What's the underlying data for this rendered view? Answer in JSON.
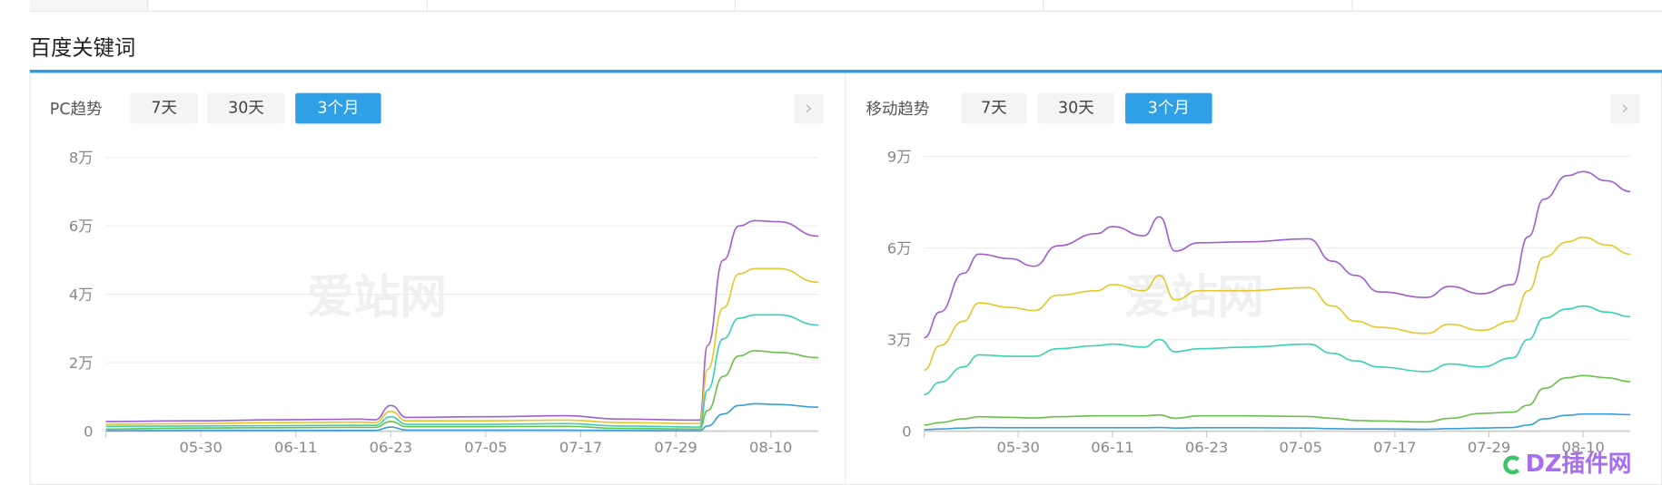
{
  "section_title": "百度关键词",
  "watermark": "爱站网",
  "corner_logo": "DZ插件网",
  "colors": {
    "accent": "#2fa0e6",
    "series": [
      "#a05fd0",
      "#e6c72a",
      "#3ccfb5",
      "#6ac04c",
      "#3a9fd8"
    ]
  },
  "pc": {
    "label": "PC趋势",
    "buttons": [
      "7天",
      "30天",
      "3个月"
    ],
    "active_button": "3个月",
    "next_icon": "chevron-right-icon"
  },
  "mobile": {
    "label": "移动趋势",
    "buttons": [
      "7天",
      "30天",
      "3个月"
    ],
    "active_button": "3个月",
    "next_icon": "chevron-right-icon"
  },
  "chart_data": [
    {
      "type": "line",
      "title": "PC趋势",
      "unit": "万",
      "ylim": [
        0,
        8
      ],
      "yticks": [
        "0",
        "2万",
        "4万",
        "6万",
        "8万"
      ],
      "xlim": [
        "05-18",
        "08-16"
      ],
      "xticks": [
        "05-30",
        "06-11",
        "06-23",
        "07-05",
        "07-17",
        "07-29",
        "08-10"
      ],
      "grid": true,
      "x": [
        "05-18",
        "05-29",
        "06-09",
        "06-19",
        "06-21",
        "06-23",
        "06-25",
        "07-05",
        "07-15",
        "07-22",
        "08-01",
        "08-02",
        "08-04",
        "08-06",
        "08-08",
        "08-11",
        "08-16"
      ],
      "series": [
        {
          "values": [
            0.28,
            0.3,
            0.33,
            0.35,
            0.33,
            0.75,
            0.4,
            0.42,
            0.45,
            0.35,
            0.32,
            2.5,
            5.0,
            6.0,
            6.15,
            6.12,
            5.7
          ]
        },
        {
          "values": [
            0.2,
            0.22,
            0.25,
            0.26,
            0.25,
            0.58,
            0.3,
            0.3,
            0.32,
            0.25,
            0.22,
            1.8,
            3.6,
            4.6,
            4.75,
            4.75,
            4.35
          ]
        },
        {
          "values": [
            0.14,
            0.15,
            0.16,
            0.17,
            0.17,
            0.42,
            0.2,
            0.2,
            0.22,
            0.15,
            0.12,
            1.2,
            2.7,
            3.3,
            3.4,
            3.4,
            3.1
          ]
        },
        {
          "values": [
            0.06,
            0.09,
            0.1,
            0.11,
            0.11,
            0.28,
            0.13,
            0.13,
            0.14,
            0.08,
            0.06,
            0.6,
            1.6,
            2.2,
            2.35,
            2.3,
            2.15
          ]
        },
        {
          "values": [
            0.01,
            0.02,
            0.02,
            0.02,
            0.02,
            0.12,
            0.03,
            0.03,
            0.03,
            0.02,
            0.01,
            0.15,
            0.5,
            0.75,
            0.8,
            0.78,
            0.7
          ]
        }
      ]
    },
    {
      "type": "line",
      "title": "移动趋势",
      "unit": "万",
      "ylim": [
        0,
        9
      ],
      "yticks": [
        "0",
        "3万",
        "6万",
        "9万"
      ],
      "xlim": [
        "05-18",
        "08-16"
      ],
      "xticks": [
        "05-30",
        "06-11",
        "06-23",
        "07-05",
        "07-17",
        "07-29",
        "08-10"
      ],
      "grid": true,
      "x": [
        "05-18",
        "05-20",
        "05-23",
        "05-25",
        "05-29",
        "06-01",
        "06-04",
        "06-09",
        "06-11",
        "06-15",
        "06-17",
        "06-19",
        "06-22",
        "06-28",
        "07-06",
        "07-09",
        "07-12",
        "07-15",
        "07-21",
        "07-24",
        "07-28",
        "08-01",
        "08-03",
        "08-05",
        "08-08",
        "08-10",
        "08-13",
        "08-16"
      ],
      "series": [
        {
          "values": [
            3.06,
            3.9,
            5.17,
            5.8,
            5.65,
            5.4,
            6.07,
            6.47,
            6.7,
            6.4,
            7.02,
            5.9,
            6.17,
            6.2,
            6.3,
            5.57,
            5.1,
            4.56,
            4.38,
            4.74,
            4.5,
            4.8,
            6.37,
            7.6,
            8.37,
            8.5,
            8.2,
            7.85
          ]
        },
        {
          "values": [
            2.0,
            2.8,
            3.6,
            4.2,
            4.05,
            3.95,
            4.45,
            4.6,
            4.8,
            4.6,
            5.1,
            4.3,
            4.6,
            4.6,
            4.7,
            4.1,
            3.6,
            3.4,
            3.2,
            3.5,
            3.3,
            3.6,
            4.6,
            5.7,
            6.2,
            6.35,
            6.1,
            5.8
          ]
        },
        {
          "values": [
            1.2,
            1.6,
            2.1,
            2.5,
            2.45,
            2.45,
            2.7,
            2.8,
            2.85,
            2.75,
            3.0,
            2.6,
            2.7,
            2.75,
            2.85,
            2.55,
            2.3,
            2.1,
            1.95,
            2.2,
            2.1,
            2.4,
            3.0,
            3.7,
            4.0,
            4.1,
            3.9,
            3.75
          ]
        },
        {
          "values": [
            0.2,
            0.28,
            0.4,
            0.47,
            0.45,
            0.43,
            0.47,
            0.5,
            0.5,
            0.5,
            0.53,
            0.42,
            0.5,
            0.5,
            0.48,
            0.42,
            0.35,
            0.33,
            0.3,
            0.42,
            0.58,
            0.62,
            0.85,
            1.4,
            1.75,
            1.82,
            1.75,
            1.62
          ]
        },
        {
          "values": [
            0.05,
            0.07,
            0.1,
            0.12,
            0.11,
            0.11,
            0.11,
            0.11,
            0.11,
            0.11,
            0.12,
            0.1,
            0.11,
            0.11,
            0.1,
            0.08,
            0.07,
            0.07,
            0.06,
            0.08,
            0.1,
            0.12,
            0.2,
            0.4,
            0.52,
            0.56,
            0.56,
            0.54
          ]
        }
      ]
    }
  ]
}
